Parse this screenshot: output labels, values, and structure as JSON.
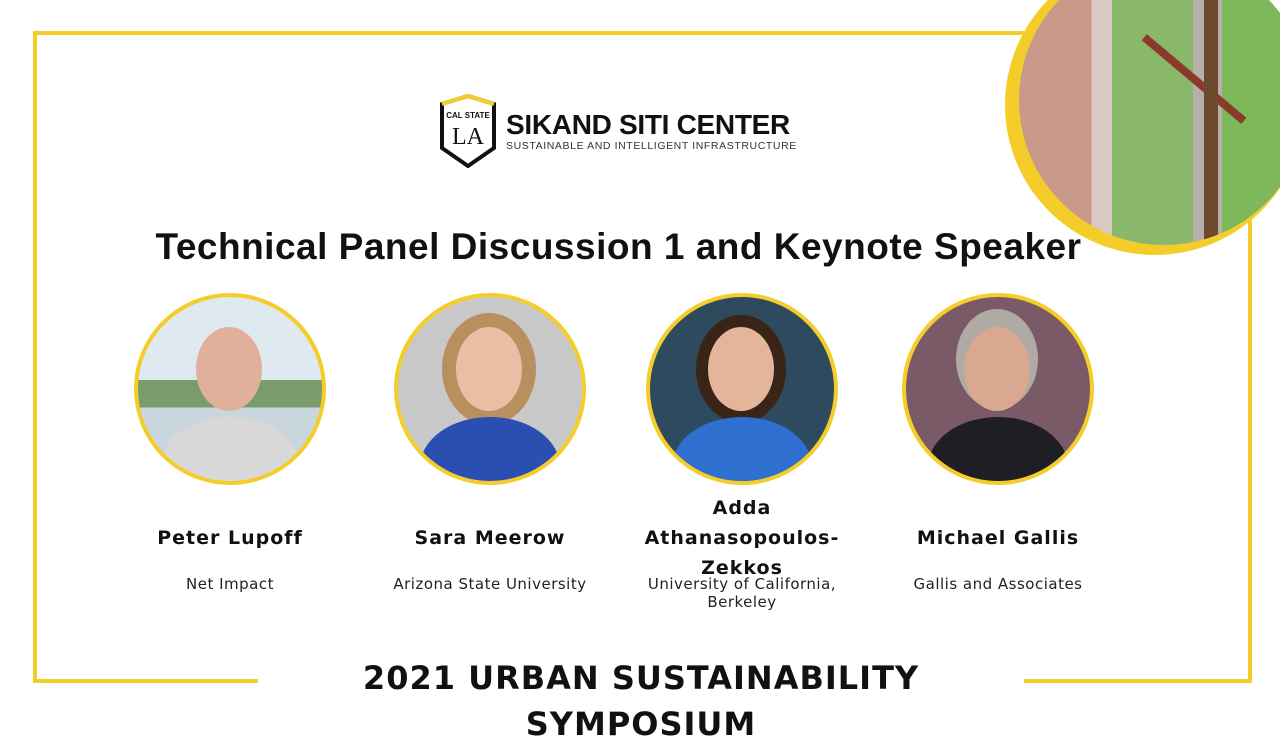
{
  "logo": {
    "badge_top": "CAL STATE",
    "badge_main": "LA",
    "title": "SIKAND SITI CENTER",
    "subtitle": "SUSTAINABLE AND INTELLIGENT INFRASTRUCTURE"
  },
  "title": "Technical Panel Discussion 1 and Keynote Speaker",
  "speakers": [
    {
      "name": "Peter Lupoff",
      "org": "Net Impact"
    },
    {
      "name": "Sara Meerow",
      "org": "Arizona State University"
    },
    {
      "name": "Adda Athanasopoulos-Zekkos",
      "org": "University of California, Berkeley"
    },
    {
      "name": "Michael Gallis",
      "org": "Gallis and Associates"
    }
  ],
  "footer": "2021 URBAN SUSTAINABILITY SYMPOSIUM",
  "colors": {
    "accent": "#f5cd2a"
  }
}
